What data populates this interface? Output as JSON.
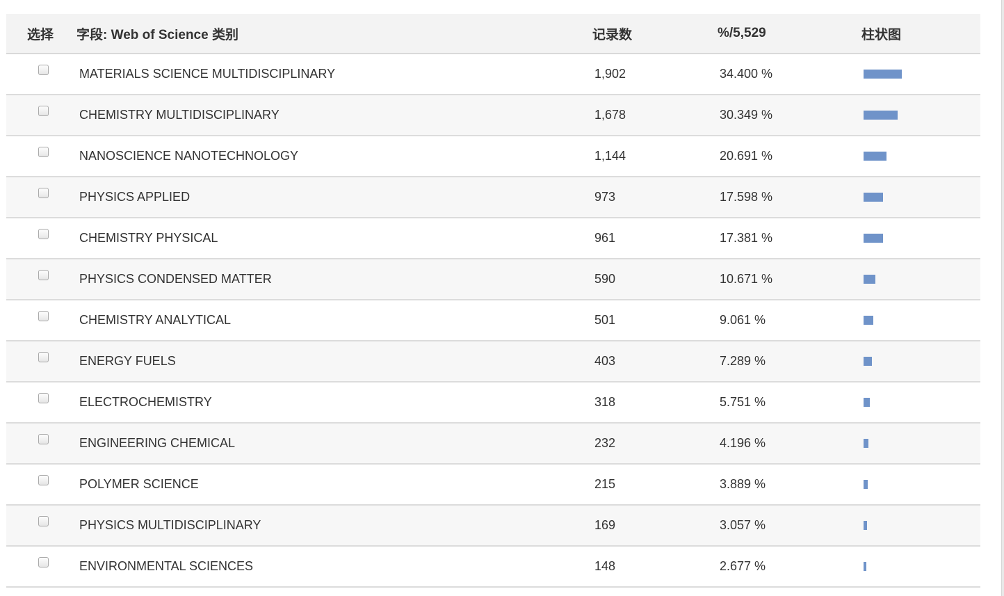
{
  "header": {
    "select": "选择",
    "field": "字段: Web of Science 类别",
    "count": "记录数",
    "percent": "%/5,529",
    "bar": "柱状图"
  },
  "colors": {
    "bar": "#6f93c9",
    "header_bg": "#f3f3f3",
    "row_alt_bg": "#f7f7f7"
  },
  "rows": [
    {
      "category": "MATERIALS SCIENCE MULTIDISCIPLINARY",
      "count": "1,902",
      "percent": "34.400 %",
      "bar_fraction": 0.344
    },
    {
      "category": "CHEMISTRY MULTIDISCIPLINARY",
      "count": "1,678",
      "percent": "30.349 %",
      "bar_fraction": 0.30349
    },
    {
      "category": "NANOSCIENCE NANOTECHNOLOGY",
      "count": "1,144",
      "percent": "20.691 %",
      "bar_fraction": 0.20691
    },
    {
      "category": "PHYSICS APPLIED",
      "count": "973",
      "percent": "17.598 %",
      "bar_fraction": 0.17598
    },
    {
      "category": "CHEMISTRY PHYSICAL",
      "count": "961",
      "percent": "17.381 %",
      "bar_fraction": 0.17381
    },
    {
      "category": "PHYSICS CONDENSED MATTER",
      "count": "590",
      "percent": "10.671 %",
      "bar_fraction": 0.10671
    },
    {
      "category": "CHEMISTRY ANALYTICAL",
      "count": "501",
      "percent": "9.061 %",
      "bar_fraction": 0.09061
    },
    {
      "category": "ENERGY FUELS",
      "count": "403",
      "percent": "7.289 %",
      "bar_fraction": 0.07289
    },
    {
      "category": "ELECTROCHEMISTRY",
      "count": "318",
      "percent": "5.751 %",
      "bar_fraction": 0.05751
    },
    {
      "category": "ENGINEERING CHEMICAL",
      "count": "232",
      "percent": "4.196 %",
      "bar_fraction": 0.04196
    },
    {
      "category": "POLYMER SCIENCE",
      "count": "215",
      "percent": "3.889 %",
      "bar_fraction": 0.03889
    },
    {
      "category": "PHYSICS MULTIDISCIPLINARY",
      "count": "169",
      "percent": "3.057 %",
      "bar_fraction": 0.03057
    },
    {
      "category": "ENVIRONMENTAL SCIENCES",
      "count": "148",
      "percent": "2.677 %",
      "bar_fraction": 0.02677
    }
  ]
}
